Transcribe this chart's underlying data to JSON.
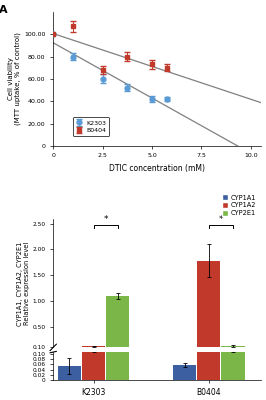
{
  "panel_A": {
    "xlabel": "DTIC concentration (mM)",
    "ylabel": "Cell viability\n(MTT uptake, % of control)",
    "xlim": [
      0,
      10.5
    ],
    "ylim": [
      0,
      120
    ],
    "yticks": [
      0,
      20,
      40,
      60,
      80,
      100
    ],
    "ytick_labels": [
      "0",
      "20.00",
      "40.00",
      "60.00",
      "80.00",
      "100.00"
    ],
    "xticks": [
      0,
      2.5,
      5.0,
      7.5,
      10.0
    ],
    "K2303": {
      "x": [
        0,
        1.0,
        2.5,
        3.75,
        5.0,
        5.75
      ],
      "y": [
        100,
        80,
        60,
        52,
        42,
        42
      ],
      "yerr": [
        0,
        3,
        4,
        3,
        3,
        2
      ],
      "color": "#5b9bd5",
      "marker": "o",
      "label": "K2303"
    },
    "B0404": {
      "x": [
        0,
        1.0,
        2.5,
        3.75,
        5.0,
        5.75
      ],
      "y": [
        100,
        107,
        68,
        80,
        73,
        70
      ],
      "yerr": [
        0,
        5,
        4,
        4,
        4,
        3
      ],
      "color": "#c0392b",
      "marker": "s",
      "label": "B0404"
    },
    "fit_color": "#808080"
  },
  "panel_B": {
    "ylabel": "CYP1A1, CYP1A2, CYP2E1\nRelative expression level",
    "legend_labels": [
      "CYP1A1",
      "CYP1A2",
      "CYP2E1"
    ],
    "legend_colors": [
      "#3B5FA0",
      "#C0392B",
      "#7AB648"
    ],
    "groups": [
      "K2303",
      "B0404"
    ],
    "CYP1A1": {
      "values": [
        0.055,
        0.057
      ],
      "yerr": [
        0.03,
        0.007
      ],
      "color": "#3B5FA0"
    },
    "CYP1A2": {
      "values": [
        0.12,
        1.78
      ],
      "yerr": [
        0.01,
        0.32
      ],
      "color": "#C0392B"
    },
    "CYP2E1": {
      "values": [
        1.1,
        0.12
      ],
      "yerr": [
        0.06,
        0.012
      ],
      "color": "#7AB648"
    },
    "yticks_lower": [
      0,
      0.02,
      0.04,
      0.06,
      0.08,
      0.1
    ],
    "ytick_labels_lower": [
      "0",
      "0.02",
      "0.04",
      "0.06",
      "0.08",
      "0.10"
    ],
    "yticks_upper": [
      0.1,
      0.5,
      1.0,
      1.5,
      2.0,
      2.5
    ],
    "ytick_labels_upper": [
      "0.10",
      "0.50",
      "1.00",
      "1.50",
      "2.00",
      "2.50"
    ],
    "ylim_lower": [
      0,
      0.108
    ],
    "ylim_upper": [
      0.095,
      2.58
    ],
    "group_positions": [
      1.0,
      2.0
    ],
    "bar_width": 0.2,
    "offsets": [
      -0.21,
      0.0,
      0.21
    ]
  }
}
